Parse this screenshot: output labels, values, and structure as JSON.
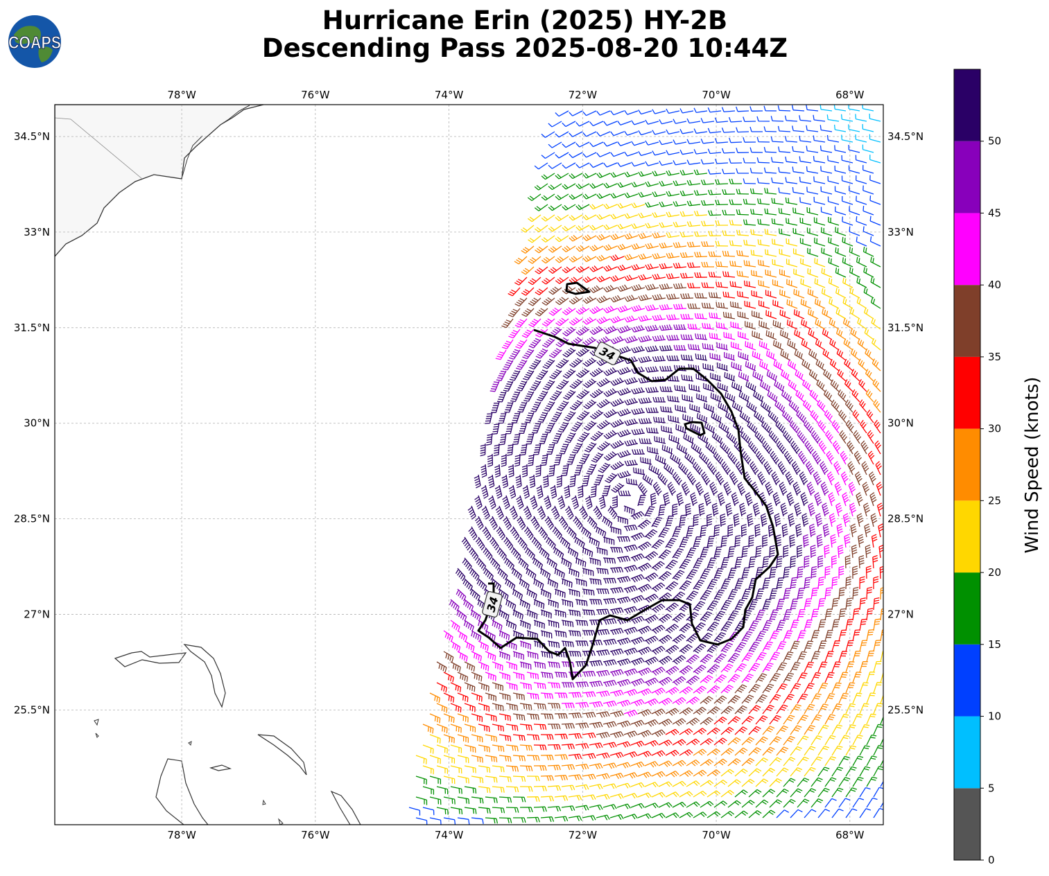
{
  "title": {
    "line1": "Hurricane Erin (2025) HY-2B",
    "line2": "Descending Pass 2025-08-20 10:44Z"
  },
  "logo": {
    "text": "COAPS",
    "icon": "globe-icon"
  },
  "map": {
    "lon_range": [
      -79.9,
      -67.5
    ],
    "lat_range": [
      23.7,
      35.0
    ],
    "lon_ticks": [
      {
        "value": -78,
        "label": "78°W"
      },
      {
        "value": -76,
        "label": "76°W"
      },
      {
        "value": -74,
        "label": "74°W"
      },
      {
        "value": -72,
        "label": "72°W"
      },
      {
        "value": -70,
        "label": "70°W"
      },
      {
        "value": -68,
        "label": "68°W"
      }
    ],
    "lat_ticks": [
      {
        "value": 34.5,
        "label": "34.5°N"
      },
      {
        "value": 33.0,
        "label": "33°N"
      },
      {
        "value": 31.5,
        "label": "31.5°N"
      },
      {
        "value": 30.0,
        "label": "30°N"
      },
      {
        "value": 28.5,
        "label": "28.5°N"
      },
      {
        "value": 27.0,
        "label": "27°N"
      },
      {
        "value": 25.5,
        "label": "25.5°N"
      }
    ],
    "grid": true,
    "center": {
      "lon": -71.3,
      "lat": 28.8
    },
    "contour": {
      "value": 34,
      "labels": [
        "34",
        "34"
      ]
    }
  },
  "colorbar": {
    "label": "Wind Speed (knots)",
    "ticks": [
      "0",
      "5",
      "10",
      "15",
      "20",
      "25",
      "30",
      "35",
      "40",
      "45",
      "50"
    ],
    "bins": [
      {
        "min": 0,
        "max": 5,
        "color": "#555555"
      },
      {
        "min": 5,
        "max": 10,
        "color": "#00bfff"
      },
      {
        "min": 10,
        "max": 15,
        "color": "#0040ff"
      },
      {
        "min": 15,
        "max": 20,
        "color": "#009000"
      },
      {
        "min": 20,
        "max": 25,
        "color": "#ffd700"
      },
      {
        "min": 25,
        "max": 30,
        "color": "#ff8c00"
      },
      {
        "min": 30,
        "max": 35,
        "color": "#ff0000"
      },
      {
        "min": 35,
        "max": 40,
        "color": "#7f3f2a"
      },
      {
        "min": 40,
        "max": 45,
        "color": "#ff00ff"
      },
      {
        "min": 45,
        "max": 50,
        "color": "#8800bb"
      },
      {
        "min": 50,
        "max": 55,
        "color": "#2a0066"
      }
    ]
  }
}
